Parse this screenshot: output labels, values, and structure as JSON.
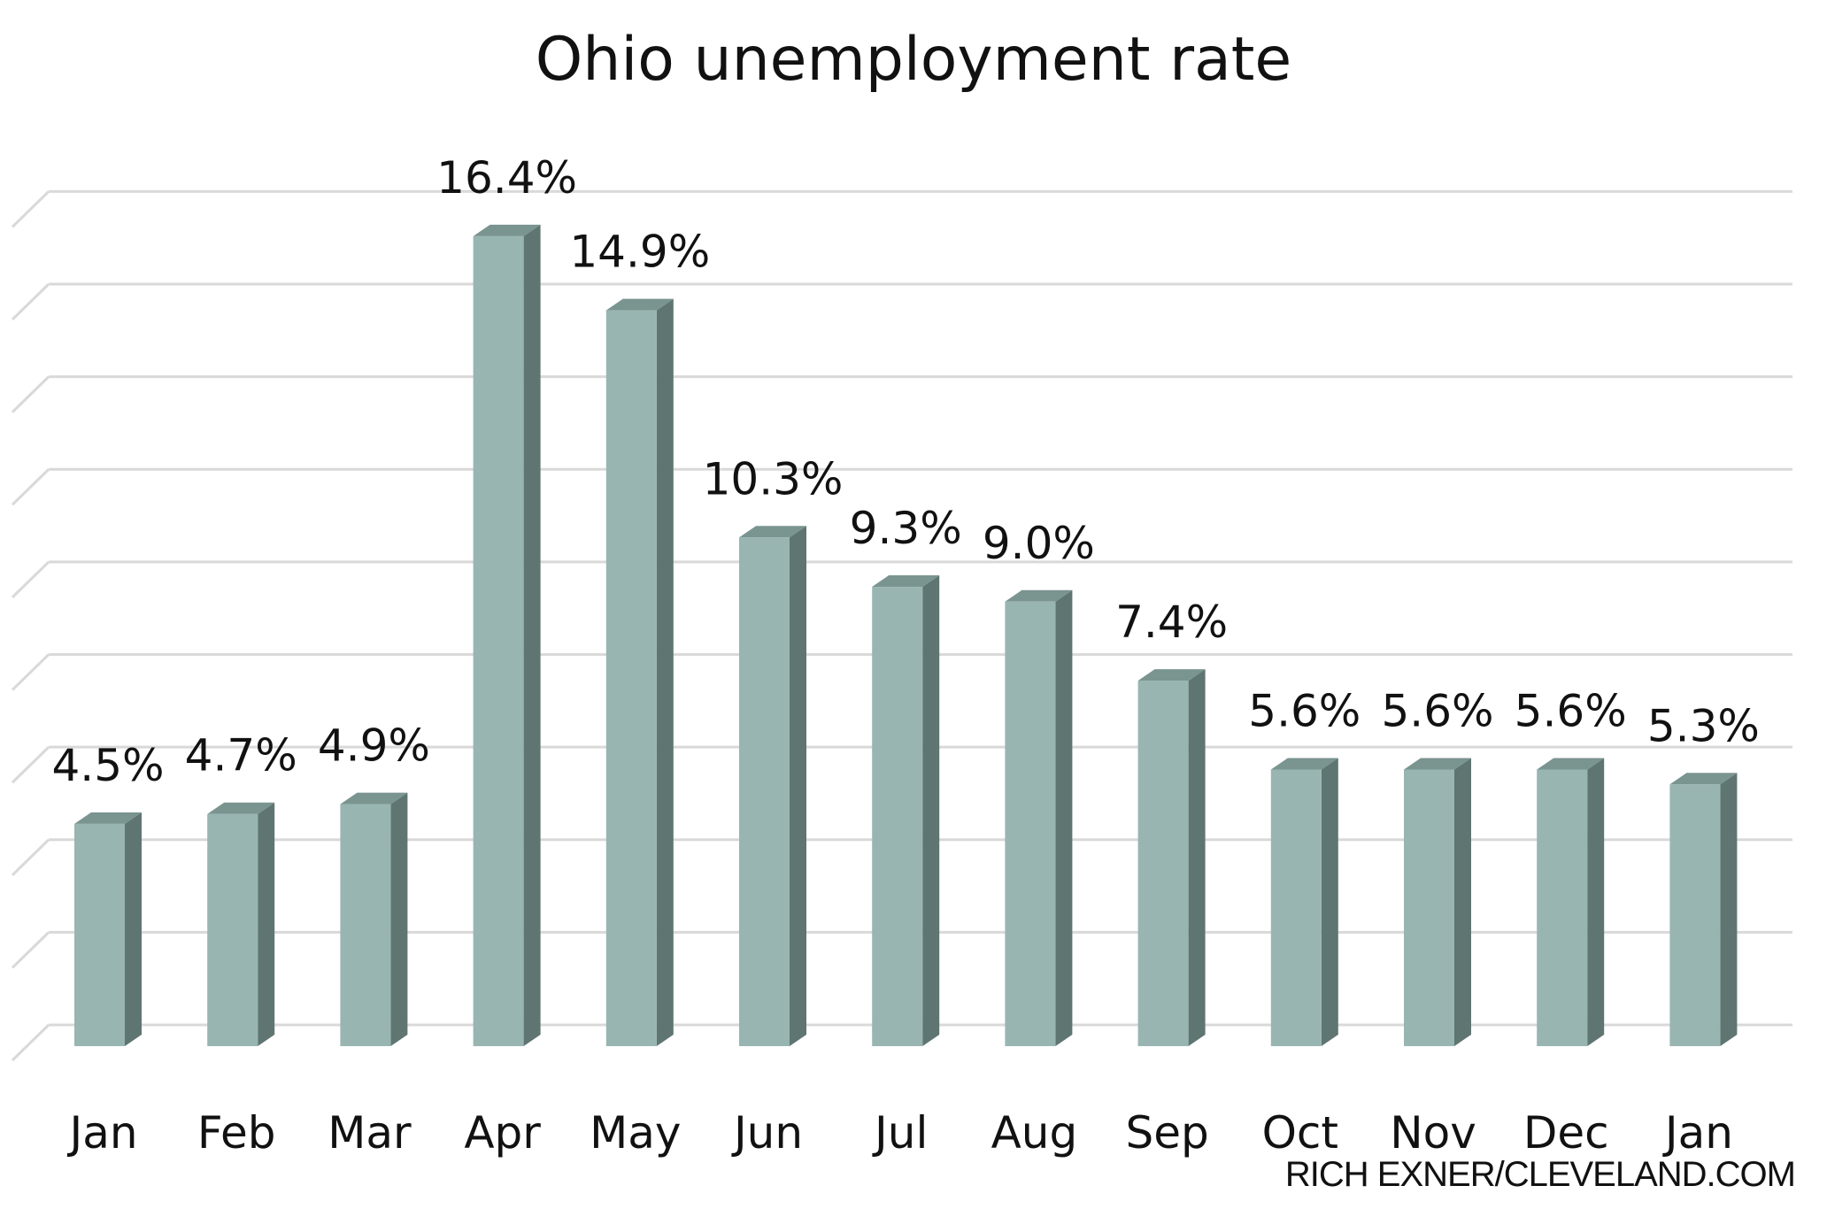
{
  "chart_data": {
    "type": "bar",
    "title": "Ohio unemployment rate",
    "categories": [
      "Jan",
      "Feb",
      "Mar",
      "Apr",
      "May",
      "Jun",
      "Jul",
      "Aug",
      "Sep",
      "Oct",
      "Nov",
      "Dec",
      "Jan"
    ],
    "values": [
      4.5,
      4.7,
      4.9,
      16.4,
      14.9,
      10.3,
      9.3,
      9.0,
      7.4,
      5.6,
      5.6,
      5.6,
      5.3
    ],
    "value_labels": [
      "4.5%",
      "4.7%",
      "4.9%",
      "16.4%",
      "14.9%",
      "10.3%",
      "9.3%",
      "9.0%",
      "7.4%",
      "5.6%",
      "5.6%",
      "5.6%",
      "5.3%"
    ],
    "xlabel": "",
    "ylabel": "",
    "ylim": [
      0,
      18.5
    ],
    "grid": true,
    "legend": "none",
    "style": "3d-column"
  },
  "credit": "RICH EXNER/CLEVELAND.COM",
  "colors": {
    "bar_front": "#98b5b2",
    "bar_side": "#5f7572",
    "bar_top": "#7a9490",
    "grid": "#d9d9d9",
    "text": "#111111"
  }
}
